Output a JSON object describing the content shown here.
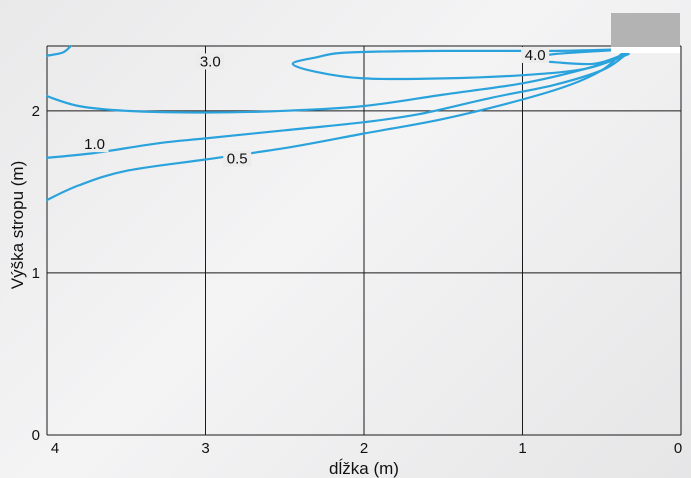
{
  "chart_data": {
    "type": "contour",
    "title": "",
    "xlabel": "dĺžka (m)",
    "ylabel": "Výška stropu (m)",
    "xlim": [
      4,
      0
    ],
    "ylim": [
      0,
      2.4
    ],
    "x_ticks": [
      "4",
      "3",
      "2",
      "1",
      "0"
    ],
    "y_ticks": [
      "0",
      "1",
      "2"
    ],
    "grid": true,
    "line_color": "#2aa3dc",
    "legend_box_color": "#b3b3b3",
    "series": [
      {
        "name": "0.5",
        "label_at": [
          2.8,
          1.68
        ],
        "points": [
          [
            4.0,
            1.45
          ],
          [
            3.8,
            1.54
          ],
          [
            3.5,
            1.63
          ],
          [
            3.0,
            1.7
          ],
          [
            2.5,
            1.77
          ],
          [
            2.0,
            1.86
          ],
          [
            1.5,
            1.95
          ],
          [
            1.0,
            2.07
          ],
          [
            0.7,
            2.16
          ],
          [
            0.5,
            2.25
          ],
          [
            0.4,
            2.33
          ],
          [
            0.35,
            2.37
          ]
        ]
      },
      {
        "name": "1.0",
        "label_at": [
          3.7,
          1.77
        ],
        "points": [
          [
            4.0,
            1.71
          ],
          [
            3.7,
            1.74
          ],
          [
            3.3,
            1.8
          ],
          [
            3.0,
            1.83
          ],
          [
            2.5,
            1.88
          ],
          [
            2.0,
            1.93
          ],
          [
            1.65,
            1.98
          ],
          [
            1.2,
            2.08
          ],
          [
            0.8,
            2.16
          ],
          [
            0.5,
            2.25
          ],
          [
            0.37,
            2.33
          ],
          [
            0.33,
            2.37
          ]
        ]
      },
      {
        "name": "2.0",
        "points": [
          [
            4.0,
            2.09
          ],
          [
            3.8,
            2.03
          ],
          [
            3.5,
            2.0
          ],
          [
            3.0,
            1.99
          ],
          [
            2.5,
            2.0
          ],
          [
            2.0,
            2.03
          ],
          [
            1.5,
            2.1
          ],
          [
            1.0,
            2.17
          ],
          [
            0.6,
            2.26
          ],
          [
            0.4,
            2.33
          ],
          [
            0.33,
            2.37
          ]
        ]
      },
      {
        "name": "3.0",
        "label_at": [
          2.97,
          2.28
        ],
        "points": [
          [
            0.32,
            2.38
          ],
          [
            0.8,
            2.37
          ],
          [
            1.5,
            2.37
          ],
          [
            2.1,
            2.36
          ],
          [
            2.3,
            2.33
          ],
          [
            2.45,
            2.29
          ],
          [
            2.3,
            2.24
          ],
          [
            2.0,
            2.2
          ],
          [
            1.5,
            2.2
          ],
          [
            1.0,
            2.22
          ],
          [
            0.6,
            2.26
          ],
          [
            0.33,
            2.35
          ]
        ]
      },
      {
        "name": "4.0",
        "label_at": [
          0.92,
          2.32
        ],
        "points": [
          [
            0.32,
            2.38
          ],
          [
            0.5,
            2.37
          ],
          [
            0.8,
            2.35
          ],
          [
            1.0,
            2.32
          ],
          [
            0.8,
            2.3
          ],
          [
            0.55,
            2.29
          ],
          [
            0.38,
            2.34
          ]
        ]
      },
      {
        "name": "",
        "points": [
          [
            4.0,
            2.34
          ],
          [
            3.9,
            2.36
          ],
          [
            3.85,
            2.4
          ]
        ]
      }
    ]
  }
}
